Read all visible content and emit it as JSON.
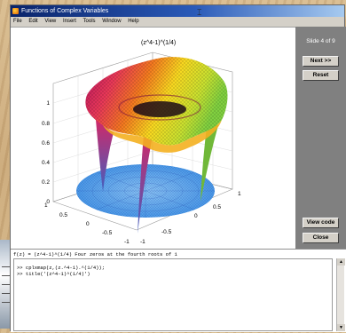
{
  "window": {
    "title": "Functions of Complex Variables"
  },
  "menu": [
    "File",
    "Edit",
    "View",
    "Insert",
    "Tools",
    "Window",
    "Help"
  ],
  "plot": {
    "title": "(z^4-1)^(1/4)",
    "z_ticks": [
      "0",
      "0.2",
      "0.4",
      "0.6",
      "0.8",
      "1"
    ],
    "left_ticks": [
      "1",
      "0.5",
      "0",
      "-0.5",
      "-1"
    ],
    "right_ticks": [
      "-1",
      "-0.5",
      "0",
      "0.5",
      "1"
    ],
    "colors": {
      "surface_dark": "#c21a6a",
      "surface_mid": "#f07020",
      "surface_light": "#f6e020",
      "surface_green": "#88d040",
      "disk": "#5aa8ee"
    }
  },
  "panel": {
    "slide_label": "Slide 4 of 9",
    "next_button": "Next >>",
    "reset_button": "Reset",
    "view_code_button": "View code",
    "close_button": "Close"
  },
  "command": {
    "description": "f(z) = (z^4-1)^(1/4)    Four zeros at the fourth roots of 1",
    "lines": [
      ">> cplxmap(z,(z.^4-1).^(1/4));",
      ">> title('(z^4-1)^(1/4)')"
    ]
  }
}
